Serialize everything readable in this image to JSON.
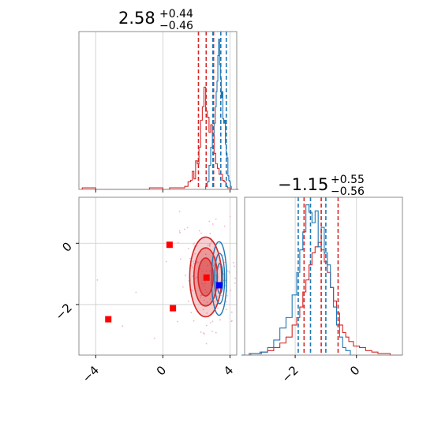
{
  "colors": {
    "sample_a": "#d62728",
    "sample_b": "#1f77b4",
    "marker_red": "#ff0000",
    "marker_blue": "#0000ff",
    "scatter": "#e7b7cf"
  },
  "titles": {
    "param1": {
      "value": "2.58",
      "upper": "+0.44",
      "lower": "−0.46"
    },
    "param2": {
      "value": "−1.15",
      "upper": "+0.55",
      "lower": "−0.56"
    }
  },
  "chart_data": [
    {
      "type": "line",
      "panel": "param1-marginal",
      "xlim": [
        -5,
        4.4
      ],
      "ylim": [
        0,
        1.05
      ],
      "grid": true,
      "x_ticks": [
        -4,
        0,
        4
      ],
      "quantile_lines": {
        "red": [
          2.12,
          2.58,
          3.02
        ],
        "blue": [
          2.98,
          3.45,
          3.78
        ]
      },
      "series": [
        {
          "color_key": "sample_a",
          "x": [
            -4.6,
            -4.2,
            -3.8,
            -3.4,
            -3.0,
            -2.6,
            -2.2,
            -1.8,
            -1.4,
            -1.0,
            -0.6,
            -0.2,
            0.2,
            0.6,
            1.0,
            1.2,
            1.4,
            1.6,
            1.7,
            1.8,
            1.9,
            2.0,
            2.1,
            2.2,
            2.3,
            2.4,
            2.5,
            2.6,
            2.7,
            2.8,
            2.9,
            3.0,
            3.1,
            3.2,
            3.3,
            3.4,
            3.5,
            3.6,
            3.7,
            3.8,
            3.9,
            4.0,
            4.1,
            4.2,
            4.3
          ],
          "y": [
            0.01,
            0.01,
            0.0,
            0.0,
            0.0,
            0.0,
            0.0,
            0.0,
            0.0,
            0.0,
            0.01,
            0.01,
            0.0,
            0.01,
            0.01,
            0.01,
            0.02,
            0.05,
            0.06,
            0.12,
            0.07,
            0.19,
            0.17,
            0.28,
            0.46,
            0.55,
            0.68,
            0.52,
            0.48,
            0.38,
            0.43,
            0.36,
            0.24,
            0.17,
            0.14,
            0.1,
            0.1,
            0.06,
            0.05,
            0.02,
            0.01,
            0.01,
            0.0,
            0.0,
            0.0
          ]
        },
        {
          "color_key": "sample_b",
          "x": [
            2.5,
            2.6,
            2.7,
            2.8,
            2.9,
            3.0,
            3.1,
            3.15,
            3.2,
            3.25,
            3.3,
            3.35,
            3.4,
            3.45,
            3.5,
            3.55,
            3.6,
            3.65,
            3.7,
            3.75,
            3.8,
            3.85,
            3.9,
            3.95,
            4.0,
            4.05,
            4.1
          ],
          "y": [
            0.0,
            0.02,
            0.05,
            0.16,
            0.28,
            0.36,
            0.44,
            0.55,
            0.65,
            0.72,
            0.89,
            1.0,
            0.83,
            0.74,
            0.61,
            0.65,
            0.47,
            0.44,
            0.46,
            0.3,
            0.24,
            0.21,
            0.09,
            0.06,
            0.05,
            0.02,
            0.0
          ]
        }
      ]
    },
    {
      "type": "scatter",
      "panel": "joint",
      "xlim": [
        -5,
        4.4
      ],
      "ylim": [
        -3.65,
        1.5
      ],
      "grid": true,
      "x_ticks": [
        -4,
        0,
        4
      ],
      "y_ticks": [
        -2,
        0
      ],
      "red_markers": [
        [
          0.4,
          -0.05
        ],
        [
          0.6,
          -2.12
        ],
        [
          -3.25,
          -2.48
        ],
        [
          2.6,
          -1.12
        ]
      ],
      "blue_markers": [
        [
          3.35,
          -1.37
        ]
      ],
      "contours_red": [
        {
          "cx": 2.55,
          "cy": -1.1,
          "rx": 0.95,
          "ry": 1.3,
          "fill_opacity": 0.4
        },
        {
          "cx": 2.55,
          "cy": -1.1,
          "rx": 0.7,
          "ry": 0.95,
          "fill_opacity": 0.6
        },
        {
          "cx": 2.55,
          "cy": -1.1,
          "rx": 0.45,
          "ry": 0.62,
          "fill_opacity": 0.75
        }
      ],
      "contours_blue": [
        {
          "cx": 3.35,
          "cy": -1.15,
          "rx": 0.45,
          "ry": 1.2
        },
        {
          "cx": 3.38,
          "cy": -1.15,
          "rx": 0.3,
          "ry": 0.82
        },
        {
          "cx": 3.4,
          "cy": -1.15,
          "rx": 0.18,
          "ry": 0.5
        }
      ]
    },
    {
      "type": "line",
      "panel": "param2-marginal",
      "xlim": [
        -3.65,
        1.5
      ],
      "ylim": [
        0,
        1.05
      ],
      "grid": true,
      "x_ticks": [
        -2,
        0
      ],
      "quantile_lines": {
        "red": [
          -1.71,
          -1.15,
          -0.6
        ],
        "blue": [
          -1.9,
          -1.5,
          -1.0
        ]
      },
      "series": [
        {
          "color_key": "sample_a",
          "x": [
            -3.6,
            -3.4,
            -3.2,
            -3.0,
            -2.8,
            -2.6,
            -2.4,
            -2.2,
            -2.0,
            -1.9,
            -1.8,
            -1.7,
            -1.6,
            -1.5,
            -1.4,
            -1.3,
            -1.2,
            -1.1,
            -1.0,
            -0.9,
            -0.8,
            -0.7,
            -0.6,
            -0.5,
            -0.4,
            -0.3,
            -0.2,
            0.0,
            0.2,
            0.4,
            0.6,
            0.8,
            1.0,
            1.2,
            1.4
          ],
          "y": [
            0.0,
            0.01,
            0.01,
            0.02,
            0.03,
            0.05,
            0.08,
            0.12,
            0.2,
            0.25,
            0.32,
            0.42,
            0.5,
            0.6,
            0.68,
            0.72,
            0.75,
            0.7,
            0.62,
            0.55,
            0.45,
            0.36,
            0.28,
            0.2,
            0.15,
            0.12,
            0.09,
            0.06,
            0.05,
            0.03,
            0.02,
            0.01,
            0.01,
            0.0,
            0.0
          ]
        },
        {
          "color_key": "sample_b",
          "x": [
            -3.6,
            -3.3,
            -3.0,
            -2.8,
            -2.6,
            -2.4,
            -2.2,
            -2.0,
            -1.9,
            -1.8,
            -1.7,
            -1.6,
            -1.5,
            -1.4,
            -1.3,
            -1.2,
            -1.1,
            -1.0,
            -0.9,
            -0.8,
            -0.7,
            -0.6,
            -0.5,
            -0.4,
            -0.3,
            -0.1
          ],
          "y": [
            0.0,
            0.01,
            0.02,
            0.05,
            0.1,
            0.18,
            0.25,
            0.4,
            0.55,
            0.7,
            0.82,
            1.0,
            0.95,
            0.88,
            0.96,
            0.72,
            0.85,
            0.68,
            0.6,
            0.45,
            0.32,
            0.2,
            0.12,
            0.05,
            0.03,
            0.0
          ]
        }
      ]
    }
  ]
}
